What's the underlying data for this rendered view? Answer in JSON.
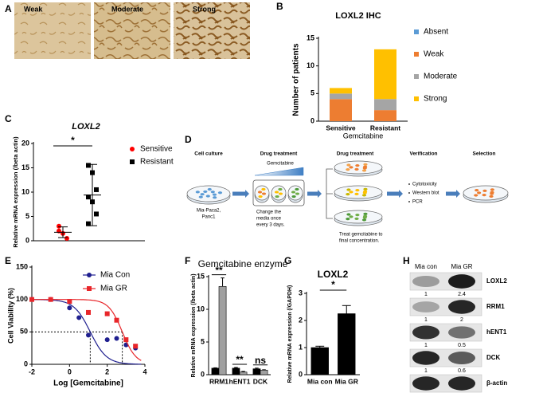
{
  "panel_labels": [
    "A",
    "B",
    "C",
    "D",
    "E",
    "F",
    "G",
    "H"
  ],
  "panel_a": {
    "labels": [
      "Weak",
      "Moderate",
      "Strong"
    ]
  },
  "chart_data": [
    {
      "type": "bar",
      "title": "LOXL2 IHC",
      "categories": [
        "Sensitive",
        "Resistant"
      ],
      "xlabel": "Gemcitabine",
      "ylabel": "Number of patients",
      "stacked": true,
      "legend": "right",
      "series": [
        {
          "name": "Absent",
          "color": "#5b9bd5",
          "values": [
            0,
            0
          ]
        },
        {
          "name": "Weak",
          "color": "#ed7d31",
          "values": [
            4,
            2
          ]
        },
        {
          "name": "Moderate",
          "color": "#a5a5a5",
          "values": [
            1,
            2
          ]
        },
        {
          "name": "Strong",
          "color": "#ffc000",
          "values": [
            1,
            9
          ]
        }
      ],
      "ylim": [
        0,
        15
      ],
      "yticks": [
        0,
        5,
        10,
        15
      ]
    },
    {
      "type": "dotplot",
      "title": "LOXL2",
      "ylabel": "Relative mRNA expression (/beta actin)",
      "legend": "upper right",
      "series": [
        {
          "name": "Sensitive",
          "color": "#ff0000",
          "marker": "circle",
          "values": [
            3,
            1.5,
            0.5,
            2
          ],
          "mean": 1.75,
          "error": 1.1
        },
        {
          "name": "Resistant",
          "color": "#000000",
          "marker": "square",
          "values": [
            15.5,
            14,
            10.5,
            9,
            8,
            5.5,
            3.5
          ],
          "mean": 9.4,
          "error": 6.3
        }
      ],
      "ylim": [
        0,
        20
      ],
      "yticks": [
        0,
        5,
        10,
        15,
        20
      ],
      "annotations": [
        "*"
      ]
    },
    {
      "type": "scatter",
      "xlabel": "Log [Gemcitabine]",
      "ylabel": "Cell Viability (%)",
      "legend": "upper right",
      "series": [
        {
          "name": "Mia Con",
          "color": "#1f1f8f",
          "marker": "circle",
          "x": [
            -2,
            -1,
            0,
            0.5,
            1,
            2,
            2.5,
            3,
            3.5
          ],
          "values": [
            100,
            100,
            87,
            72,
            45,
            38,
            40,
            30,
            25
          ],
          "fit": {
            "top": 100,
            "bottom": 0,
            "log_ic50": 1.1,
            "hill": 1
          }
        },
        {
          "name": "Mia GR",
          "color": "#e8262a",
          "marker": "square",
          "x": [
            -2,
            -1,
            0,
            1,
            2,
            2.5,
            3,
            3.5
          ],
          "values": [
            100,
            100,
            97,
            80,
            78,
            68,
            38,
            28
          ],
          "fit": {
            "top": 100,
            "bottom": 0,
            "log_ic50": 2.8,
            "hill": 1.2
          }
        }
      ],
      "xlim": [
        -2,
        4
      ],
      "xticks": [
        -2,
        0,
        2,
        4
      ],
      "ylim": [
        0,
        150
      ],
      "yticks": [
        0,
        50,
        100,
        150
      ]
    },
    {
      "type": "bar",
      "title": "Gemcitabine enzyme",
      "ylabel": "Relative mRNA expression (/beta actin)",
      "categories": [
        "RRM1",
        "hENT1",
        "DCK"
      ],
      "series": [
        {
          "color": "#000000",
          "values": [
            1,
            1,
            0.9
          ],
          "errors": [
            0.05,
            0.1,
            0.1
          ]
        },
        {
          "color": "#a0a0a0",
          "values": [
            13.5,
            0.4,
            0.7
          ],
          "errors": [
            1.3,
            0.1,
            0.05
          ]
        }
      ],
      "ylim": [
        0,
        15
      ],
      "yticks": [
        0,
        5,
        10,
        15
      ],
      "annotations": [
        "**",
        "**",
        "ns"
      ]
    },
    {
      "type": "bar",
      "title": "LOXL2",
      "ylabel": "Relative mRNA expression (/GAPDH)",
      "categories": [
        "Mia con",
        "Mia GR"
      ],
      "values": [
        1,
        2.25
      ],
      "errors": [
        0.05,
        0.3
      ],
      "color": "#000000",
      "ylim": [
        0,
        3
      ],
      "yticks": [
        0,
        1,
        2,
        3
      ],
      "annotations": [
        "*"
      ]
    }
  ],
  "panel_d": {
    "steps": [
      "Cell culture",
      "Drug treatment",
      "Drug treatment",
      "Verification",
      "Selection"
    ],
    "gradient_label": "Gemcitabine",
    "cell_lines": [
      "Mia-Paca2,",
      "Panc1"
    ],
    "media_note": [
      "Change the",
      "media once",
      "every 3 days."
    ],
    "final_note": [
      "Treat gemcitabine to",
      "final concentration."
    ],
    "verification_items": [
      "Cytotoxicity",
      "Western blot",
      "PCR"
    ]
  },
  "panel_h": {
    "lanes": [
      "Mia con",
      "Mia GR"
    ],
    "rows": [
      {
        "label": "LOXL2",
        "values": [
          1,
          2.4
        ]
      },
      {
        "label": "RRM1",
        "values": [
          1,
          2
        ]
      },
      {
        "label": "hENT1",
        "values": [
          1,
          0.5
        ]
      },
      {
        "label": "DCK",
        "values": [
          1,
          0.6
        ]
      },
      {
        "label": "β-actin"
      }
    ]
  }
}
